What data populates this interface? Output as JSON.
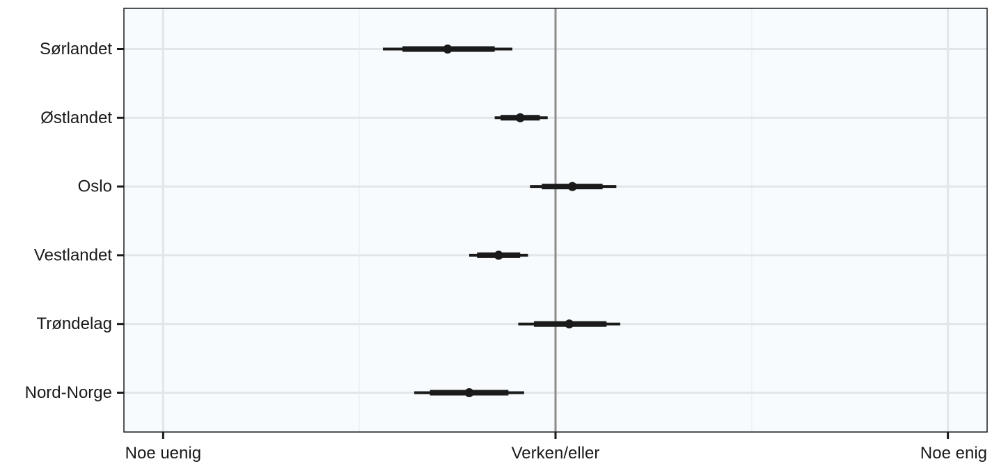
{
  "chart_data": {
    "type": "interval",
    "title": "",
    "xlabel": "",
    "ylabel": "",
    "x_ticks": [
      {
        "value": -1,
        "label": "Noe uenig"
      },
      {
        "value": 0,
        "label": "Verken/eller"
      },
      {
        "value": 1,
        "label": "Noe enig"
      }
    ],
    "x_minor_gridlines": [
      -0.5,
      0.5
    ],
    "xlim": [
      -1.1,
      1.1
    ],
    "reference_line": 0,
    "grid": true,
    "categories": [
      "Sørlandet",
      "Østlandet",
      "Oslo",
      "Vestlandet",
      "Trøndelag",
      "Nord-Norge"
    ],
    "points": [
      {
        "label": "Sørlandet",
        "estimate": -0.275,
        "inner": [
          -0.39,
          -0.155
        ],
        "outer": [
          -0.44,
          -0.11
        ]
      },
      {
        "label": "Østlandet",
        "estimate": -0.09,
        "inner": [
          -0.14,
          -0.04
        ],
        "outer": [
          -0.155,
          -0.02
        ]
      },
      {
        "label": "Oslo",
        "estimate": 0.043,
        "inner": [
          -0.035,
          0.12
        ],
        "outer": [
          -0.065,
          0.155
        ]
      },
      {
        "label": "Vestlandet",
        "estimate": -0.145,
        "inner": [
          -0.2,
          -0.09
        ],
        "outer": [
          -0.22,
          -0.07
        ]
      },
      {
        "label": "Trøndelag",
        "estimate": 0.035,
        "inner": [
          -0.055,
          0.13
        ],
        "outer": [
          -0.095,
          0.165
        ]
      },
      {
        "label": "Nord-Norge",
        "estimate": -0.22,
        "inner": [
          -0.32,
          -0.12
        ],
        "outer": [
          -0.36,
          -0.08
        ]
      }
    ],
    "colors": {
      "panel_background": "#f7fbfd",
      "grid_major": "#e2e6e8",
      "grid_minor": "#edf1f3",
      "reference_line": "#8c8c8c",
      "interval": "#1a1a1a",
      "text": "#1a1a1a"
    }
  }
}
